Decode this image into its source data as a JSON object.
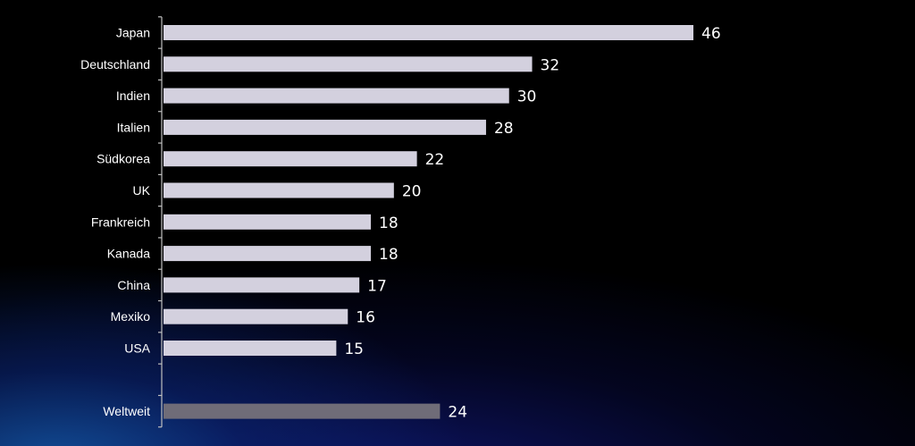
{
  "chart_data": {
    "type": "bar",
    "orientation": "horizontal",
    "categories": [
      "Japan",
      "Deutschland",
      "Indien",
      "Italien",
      "Südkorea",
      "UK",
      "Frankreich",
      "Kanada",
      "China",
      "Mexiko",
      "USA",
      "",
      "Weltweit"
    ],
    "values": [
      46,
      32,
      30,
      28,
      22,
      20,
      18,
      18,
      17,
      16,
      15,
      null,
      24
    ],
    "value_labels": [
      "46",
      "32",
      "30",
      "28",
      "22",
      "20",
      "18",
      "18",
      "17",
      "16",
      "15",
      "",
      "24"
    ],
    "title": "",
    "xlabel": "",
    "ylabel": "",
    "xlim": [
      0,
      46
    ],
    "grid": false,
    "legend": "none",
    "colors": {
      "bar": "#d3d0de",
      "highlight_bar": "#6f6c78",
      "text": "#ffffff",
      "axis": "#bfbfbf"
    },
    "highlight_category": "Weltweit"
  }
}
